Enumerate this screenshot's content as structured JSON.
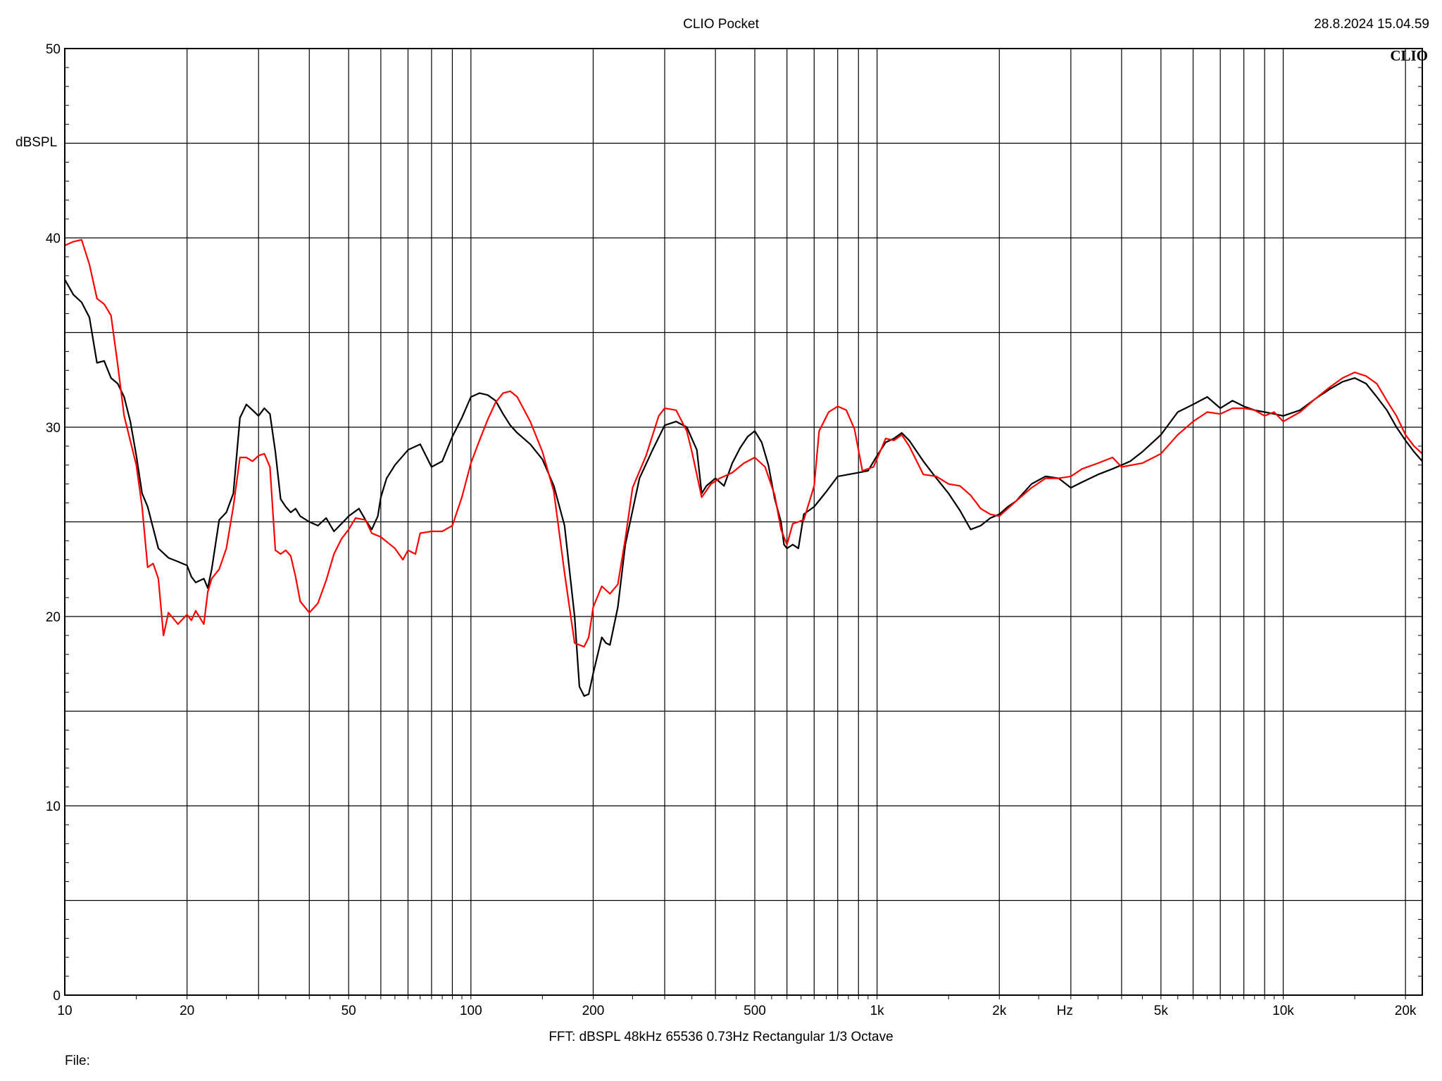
{
  "header": {
    "title": "CLIO Pocket",
    "timestamp": "28.8.2024 15.04.59"
  },
  "brand": "CLIO",
  "footer": {
    "fft_info": "FFT:  dBSPL  48kHz   65536  0.73Hz  Rectangular  1/3 Octave",
    "file_label": "File:"
  },
  "chart_data": {
    "type": "line",
    "title": "CLIO Pocket",
    "xlabel": "Hz",
    "ylabel": "dBSPL",
    "x_scale": "log",
    "xlim": [
      10,
      22000
    ],
    "ylim": [
      0,
      50
    ],
    "grid": true,
    "x_tick_labels": [
      {
        "value": 10,
        "label": "10"
      },
      {
        "value": 20,
        "label": "20"
      },
      {
        "value": 50,
        "label": "50"
      },
      {
        "value": 100,
        "label": "100"
      },
      {
        "value": 200,
        "label": "200"
      },
      {
        "value": 500,
        "label": "500"
      },
      {
        "value": 1000,
        "label": "1k"
      },
      {
        "value": 2000,
        "label": "2k"
      },
      {
        "value": 5000,
        "label": "5k"
      },
      {
        "value": 10000,
        "label": "10k"
      },
      {
        "value": 20000,
        "label": "20k"
      }
    ],
    "y_tick_labels": [
      {
        "value": 0,
        "label": "0"
      },
      {
        "value": 10,
        "label": "10"
      },
      {
        "value": 20,
        "label": "20"
      },
      {
        "value": 30,
        "label": "30"
      },
      {
        "value": 40,
        "label": "40"
      },
      {
        "value": 50,
        "label": "50"
      }
    ],
    "series": [
      {
        "color": "#000000",
        "points": [
          [
            10,
            37.8
          ],
          [
            10.5,
            37.0
          ],
          [
            11,
            36.6
          ],
          [
            11.5,
            35.8
          ],
          [
            12,
            33.4
          ],
          [
            12.5,
            33.5
          ],
          [
            13,
            32.6
          ],
          [
            13.5,
            32.3
          ],
          [
            14,
            31.6
          ],
          [
            14.5,
            30.3
          ],
          [
            15,
            28.5
          ],
          [
            15.5,
            26.5
          ],
          [
            16,
            25.8
          ],
          [
            17,
            23.6
          ],
          [
            18,
            23.1
          ],
          [
            19,
            22.9
          ],
          [
            20,
            22.7
          ],
          [
            20.5,
            22.1
          ],
          [
            21,
            21.8
          ],
          [
            22,
            22.0
          ],
          [
            22.5,
            21.5
          ],
          [
            23,
            22.5
          ],
          [
            24,
            25.1
          ],
          [
            25,
            25.5
          ],
          [
            26,
            26.5
          ],
          [
            27,
            30.5
          ],
          [
            28,
            31.2
          ],
          [
            29,
            30.9
          ],
          [
            30,
            30.6
          ],
          [
            31,
            31.0
          ],
          [
            32,
            30.7
          ],
          [
            33,
            28.7
          ],
          [
            34,
            26.2
          ],
          [
            35,
            25.8
          ],
          [
            36,
            25.5
          ],
          [
            37,
            25.7
          ],
          [
            38,
            25.3
          ],
          [
            40,
            25.0
          ],
          [
            42,
            24.8
          ],
          [
            44,
            25.2
          ],
          [
            46,
            24.5
          ],
          [
            48,
            24.9
          ],
          [
            50,
            25.3
          ],
          [
            53,
            25.7
          ],
          [
            55,
            25.1
          ],
          [
            57,
            24.6
          ],
          [
            59,
            25.3
          ],
          [
            60,
            26.3
          ],
          [
            62,
            27.3
          ],
          [
            65,
            28.0
          ],
          [
            70,
            28.8
          ],
          [
            75,
            29.1
          ],
          [
            80,
            27.9
          ],
          [
            85,
            28.2
          ],
          [
            90,
            29.5
          ],
          [
            95,
            30.5
          ],
          [
            100,
            31.6
          ],
          [
            105,
            31.8
          ],
          [
            110,
            31.7
          ],
          [
            115,
            31.4
          ],
          [
            120,
            30.7
          ],
          [
            125,
            30.1
          ],
          [
            130,
            29.7
          ],
          [
            140,
            29.1
          ],
          [
            150,
            28.3
          ],
          [
            160,
            26.9
          ],
          [
            170,
            24.8
          ],
          [
            180,
            20.0
          ],
          [
            185,
            16.3
          ],
          [
            190,
            15.8
          ],
          [
            195,
            15.9
          ],
          [
            200,
            17.0
          ],
          [
            210,
            18.9
          ],
          [
            215,
            18.6
          ],
          [
            220,
            18.5
          ],
          [
            230,
            20.5
          ],
          [
            240,
            23.8
          ],
          [
            260,
            27.3
          ],
          [
            280,
            28.8
          ],
          [
            300,
            30.1
          ],
          [
            310,
            30.2
          ],
          [
            320,
            30.3
          ],
          [
            340,
            30.0
          ],
          [
            360,
            28.8
          ],
          [
            370,
            26.5
          ],
          [
            380,
            26.9
          ],
          [
            400,
            27.3
          ],
          [
            420,
            26.9
          ],
          [
            440,
            28.1
          ],
          [
            460,
            28.9
          ],
          [
            480,
            29.5
          ],
          [
            500,
            29.8
          ],
          [
            520,
            29.2
          ],
          [
            540,
            28.0
          ],
          [
            560,
            26.2
          ],
          [
            580,
            25.0
          ],
          [
            590,
            23.8
          ],
          [
            600,
            23.6
          ],
          [
            620,
            23.8
          ],
          [
            640,
            23.6
          ],
          [
            660,
            25.4
          ],
          [
            700,
            25.8
          ],
          [
            750,
            26.6
          ],
          [
            800,
            27.4
          ],
          [
            850,
            27.5
          ],
          [
            900,
            27.6
          ],
          [
            950,
            27.7
          ],
          [
            1000,
            28.5
          ],
          [
            1050,
            29.2
          ],
          [
            1100,
            29.4
          ],
          [
            1150,
            29.7
          ],
          [
            1200,
            29.3
          ],
          [
            1300,
            28.2
          ],
          [
            1400,
            27.3
          ],
          [
            1500,
            26.5
          ],
          [
            1600,
            25.6
          ],
          [
            1700,
            24.6
          ],
          [
            1800,
            24.8
          ],
          [
            1900,
            25.2
          ],
          [
            2000,
            25.4
          ],
          [
            2100,
            25.8
          ],
          [
            2200,
            26.1
          ],
          [
            2400,
            27.0
          ],
          [
            2600,
            27.4
          ],
          [
            2800,
            27.3
          ],
          [
            3000,
            26.8
          ],
          [
            3200,
            27.1
          ],
          [
            3500,
            27.5
          ],
          [
            3800,
            27.8
          ],
          [
            4000,
            28.0
          ],
          [
            4200,
            28.2
          ],
          [
            4500,
            28.7
          ],
          [
            5000,
            29.6
          ],
          [
            5500,
            30.8
          ],
          [
            6000,
            31.2
          ],
          [
            6500,
            31.6
          ],
          [
            7000,
            31.0
          ],
          [
            7500,
            31.4
          ],
          [
            8000,
            31.1
          ],
          [
            8500,
            30.9
          ],
          [
            9000,
            30.8
          ],
          [
            9500,
            30.7
          ],
          [
            10000,
            30.6
          ],
          [
            11000,
            30.9
          ],
          [
            12000,
            31.5
          ],
          [
            13000,
            32.0
          ],
          [
            14000,
            32.4
          ],
          [
            15000,
            32.6
          ],
          [
            16000,
            32.3
          ],
          [
            17000,
            31.6
          ],
          [
            18000,
            30.9
          ],
          [
            19000,
            30.0
          ],
          [
            20000,
            29.3
          ],
          [
            21000,
            28.7
          ],
          [
            22000,
            28.2
          ]
        ]
      },
      {
        "color": "#ff0000",
        "points": [
          [
            10,
            39.6
          ],
          [
            10.5,
            39.8
          ],
          [
            11,
            39.9
          ],
          [
            11.5,
            38.6
          ],
          [
            12,
            36.8
          ],
          [
            12.5,
            36.5
          ],
          [
            13,
            35.9
          ],
          [
            13.5,
            33.3
          ],
          [
            14,
            30.6
          ],
          [
            15,
            28.0
          ],
          [
            15.5,
            25.8
          ],
          [
            16,
            22.6
          ],
          [
            16.5,
            22.8
          ],
          [
            17,
            22.0
          ],
          [
            17.5,
            19.0
          ],
          [
            18,
            20.2
          ],
          [
            19,
            19.6
          ],
          [
            20,
            20.1
          ],
          [
            20.5,
            19.8
          ],
          [
            21,
            20.3
          ],
          [
            22,
            19.6
          ],
          [
            22.5,
            21.3
          ],
          [
            23,
            22.0
          ],
          [
            24,
            22.5
          ],
          [
            25,
            23.6
          ],
          [
            26,
            25.8
          ],
          [
            27,
            28.4
          ],
          [
            28,
            28.4
          ],
          [
            29,
            28.2
          ],
          [
            30,
            28.5
          ],
          [
            31,
            28.6
          ],
          [
            32,
            27.9
          ],
          [
            33,
            23.5
          ],
          [
            34,
            23.3
          ],
          [
            35,
            23.5
          ],
          [
            36,
            23.2
          ],
          [
            37,
            22.1
          ],
          [
            38,
            20.8
          ],
          [
            40,
            20.2
          ],
          [
            42,
            20.7
          ],
          [
            44,
            21.9
          ],
          [
            46,
            23.3
          ],
          [
            48,
            24.1
          ],
          [
            50,
            24.6
          ],
          [
            52,
            25.2
          ],
          [
            55,
            25.1
          ],
          [
            57,
            24.4
          ],
          [
            60,
            24.2
          ],
          [
            65,
            23.6
          ],
          [
            68,
            23.0
          ],
          [
            70,
            23.5
          ],
          [
            73,
            23.3
          ],
          [
            75,
            24.4
          ],
          [
            80,
            24.5
          ],
          [
            85,
            24.5
          ],
          [
            90,
            24.8
          ],
          [
            95,
            26.3
          ],
          [
            100,
            28.1
          ],
          [
            105,
            29.3
          ],
          [
            110,
            30.4
          ],
          [
            115,
            31.3
          ],
          [
            120,
            31.8
          ],
          [
            125,
            31.9
          ],
          [
            130,
            31.6
          ],
          [
            140,
            30.3
          ],
          [
            150,
            28.7
          ],
          [
            160,
            26.6
          ],
          [
            170,
            22.3
          ],
          [
            180,
            18.6
          ],
          [
            190,
            18.4
          ],
          [
            195,
            18.9
          ],
          [
            200,
            20.5
          ],
          [
            210,
            21.6
          ],
          [
            220,
            21.2
          ],
          [
            230,
            21.7
          ],
          [
            240,
            24.1
          ],
          [
            250,
            26.8
          ],
          [
            270,
            28.5
          ],
          [
            290,
            30.6
          ],
          [
            300,
            31.0
          ],
          [
            320,
            30.9
          ],
          [
            340,
            29.8
          ],
          [
            350,
            28.7
          ],
          [
            370,
            26.3
          ],
          [
            390,
            27.0
          ],
          [
            410,
            27.3
          ],
          [
            440,
            27.6
          ],
          [
            470,
            28.1
          ],
          [
            500,
            28.4
          ],
          [
            530,
            27.9
          ],
          [
            560,
            26.4
          ],
          [
            580,
            24.6
          ],
          [
            600,
            23.8
          ],
          [
            620,
            24.9
          ],
          [
            660,
            25.1
          ],
          [
            700,
            26.9
          ],
          [
            720,
            29.8
          ],
          [
            760,
            30.8
          ],
          [
            800,
            31.1
          ],
          [
            840,
            30.9
          ],
          [
            880,
            29.9
          ],
          [
            920,
            27.7
          ],
          [
            980,
            27.9
          ],
          [
            1050,
            29.4
          ],
          [
            1100,
            29.3
          ],
          [
            1150,
            29.6
          ],
          [
            1200,
            29.0
          ],
          [
            1300,
            27.5
          ],
          [
            1400,
            27.4
          ],
          [
            1500,
            27.0
          ],
          [
            1600,
            26.9
          ],
          [
            1700,
            26.4
          ],
          [
            1800,
            25.7
          ],
          [
            1900,
            25.4
          ],
          [
            2000,
            25.3
          ],
          [
            2200,
            26.1
          ],
          [
            2400,
            26.8
          ],
          [
            2600,
            27.3
          ],
          [
            2800,
            27.3
          ],
          [
            3000,
            27.4
          ],
          [
            3200,
            27.8
          ],
          [
            3500,
            28.1
          ],
          [
            3800,
            28.4
          ],
          [
            4000,
            27.9
          ],
          [
            4500,
            28.1
          ],
          [
            5000,
            28.6
          ],
          [
            5500,
            29.6
          ],
          [
            6000,
            30.3
          ],
          [
            6500,
            30.8
          ],
          [
            7000,
            30.7
          ],
          [
            7500,
            31.0
          ],
          [
            8000,
            31.0
          ],
          [
            8500,
            30.9
          ],
          [
            9000,
            30.6
          ],
          [
            9500,
            30.8
          ],
          [
            10000,
            30.3
          ],
          [
            11000,
            30.8
          ],
          [
            12000,
            31.5
          ],
          [
            13000,
            32.1
          ],
          [
            14000,
            32.6
          ],
          [
            15000,
            32.9
          ],
          [
            16000,
            32.7
          ],
          [
            17000,
            32.3
          ],
          [
            18000,
            31.4
          ],
          [
            19000,
            30.6
          ],
          [
            20000,
            29.6
          ],
          [
            21000,
            29.0
          ],
          [
            22000,
            28.6
          ]
        ]
      }
    ]
  }
}
